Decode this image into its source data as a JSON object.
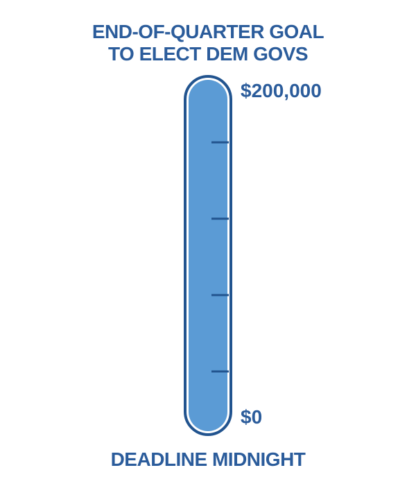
{
  "header": {
    "title_line1": "END-OF-QUARTER GOAL",
    "title_line2": "TO ELECT DEM GOVS"
  },
  "thermometer": {
    "max_label": "$200,000",
    "min_label": "$0",
    "progress_fraction": 1.0,
    "tick_count": 4
  },
  "footer": {
    "deadline": "DEADLINE MIDNIGHT"
  },
  "colors": {
    "text": "#2b5c9b",
    "outline": "#22548f",
    "fill": "#5b9bd5",
    "tick": "#22548f"
  }
}
